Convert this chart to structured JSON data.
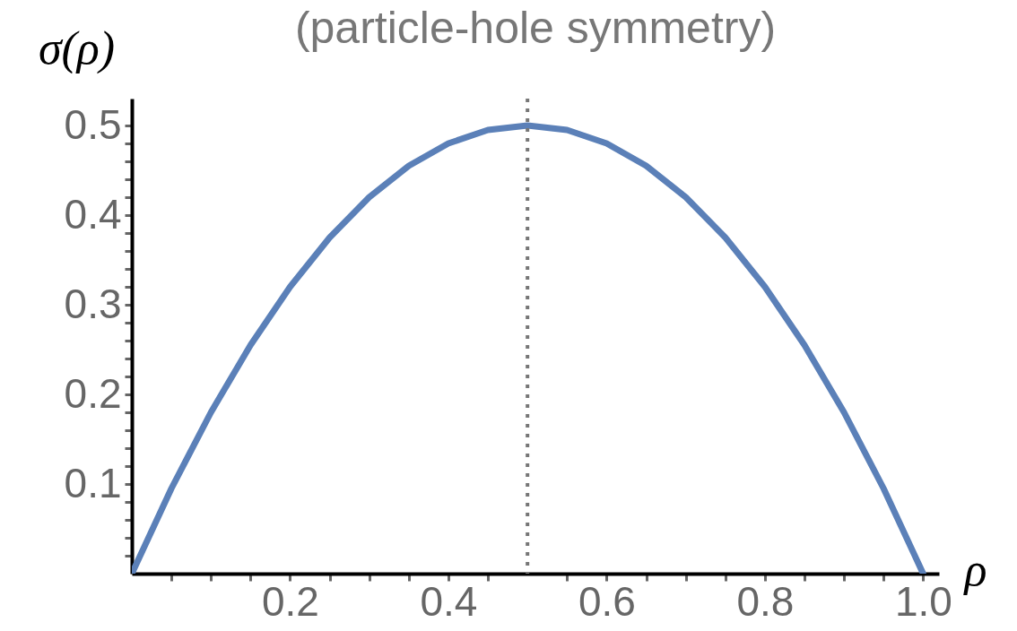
{
  "chart_data": {
    "type": "line",
    "title": "(particle-hole symmetry)",
    "xlabel": "ρ",
    "ylabel": "σ(ρ)",
    "x": [
      0,
      0.05,
      0.1,
      0.15,
      0.2,
      0.25,
      0.3,
      0.35,
      0.4,
      0.45,
      0.5,
      0.55,
      0.6,
      0.65,
      0.7,
      0.75,
      0.8,
      0.85,
      0.9,
      0.95,
      1.0
    ],
    "series": [
      {
        "color": "#5b80b8",
        "values": [
          0,
          0.095,
          0.18,
          0.255,
          0.32,
          0.375,
          0.42,
          0.455,
          0.48,
          0.495,
          0.5,
          0.495,
          0.48,
          0.455,
          0.42,
          0.375,
          0.32,
          0.255,
          0.18,
          0.095,
          0
        ]
      }
    ],
    "xlim": [
      0,
      1.02
    ],
    "ylim": [
      0,
      0.53
    ],
    "xticks": [
      {
        "value": 0.05,
        "label": null
      },
      {
        "value": 0.1,
        "label": null
      },
      {
        "value": 0.15,
        "label": null
      },
      0.2,
      {
        "value": 0.25,
        "label": null
      },
      {
        "value": 0.3,
        "label": null
      },
      {
        "value": 0.35,
        "label": null
      },
      0.4,
      {
        "value": 0.45,
        "label": null
      },
      {
        "value": 0.55,
        "label": null
      },
      0.6,
      {
        "value": 0.65,
        "label": null
      },
      {
        "value": 0.7,
        "label": null
      },
      {
        "value": 0.75,
        "label": null
      },
      0.8,
      {
        "value": 0.85,
        "label": null
      },
      {
        "value": 0.9,
        "label": null
      },
      {
        "value": 0.95,
        "label": null
      },
      {
        "value": 1,
        "label": "1.0"
      }
    ],
    "yticks": [
      {
        "value": 0.02,
        "label": null
      },
      {
        "value": 0.04,
        "label": null
      },
      {
        "value": 0.06,
        "label": null
      },
      {
        "value": 0.08,
        "label": null
      },
      0.1,
      {
        "value": 0.12,
        "label": null
      },
      {
        "value": 0.14,
        "label": null
      },
      {
        "value": 0.16,
        "label": null
      },
      {
        "value": 0.18,
        "label": null
      },
      0.2,
      {
        "value": 0.22,
        "label": null
      },
      {
        "value": 0.24,
        "label": null
      },
      {
        "value": 0.26,
        "label": null
      },
      {
        "value": 0.28,
        "label": null
      },
      0.3,
      {
        "value": 0.32,
        "label": null
      },
      {
        "value": 0.34,
        "label": null
      },
      {
        "value": 0.36,
        "label": null
      },
      {
        "value": 0.38,
        "label": null
      },
      0.4,
      {
        "value": 0.42,
        "label": null
      },
      {
        "value": 0.44,
        "label": null
      },
      {
        "value": 0.46,
        "label": null
      },
      {
        "value": 0.48,
        "label": null
      },
      0.5
    ],
    "ref_lines": [
      {
        "axis": "x",
        "value": 0.5,
        "color": "#777777",
        "line_style": "dotted"
      }
    ]
  }
}
